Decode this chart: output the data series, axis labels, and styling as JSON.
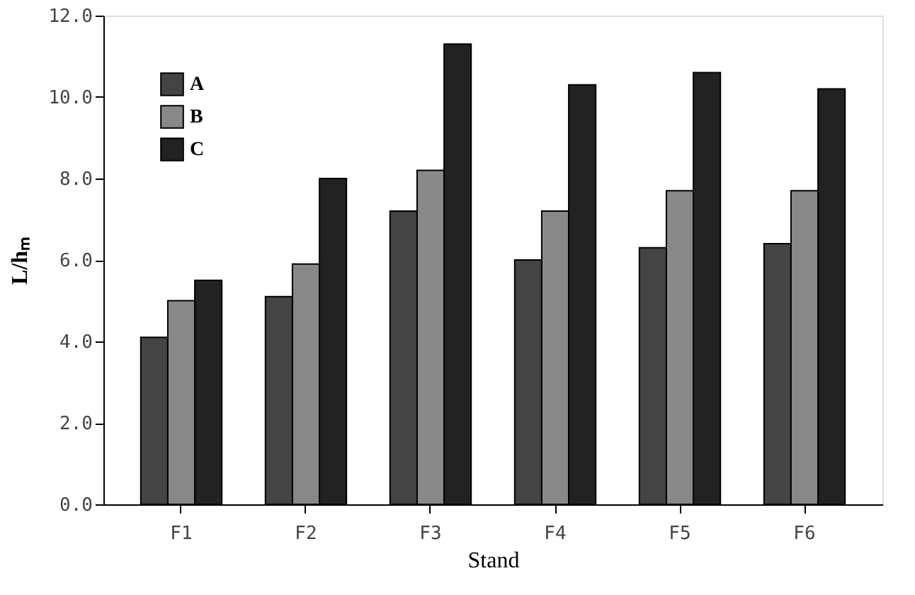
{
  "chart_data": {
    "type": "bar",
    "xlabel": "Stand",
    "ylabel": "L/hₘ",
    "categories": [
      "F1",
      "F2",
      "F3",
      "F4",
      "F5",
      "F6"
    ],
    "series": [
      {
        "name": "A",
        "color": "#444444",
        "values": [
          4.1,
          5.1,
          7.2,
          6.0,
          6.3,
          6.4
        ]
      },
      {
        "name": "B",
        "color": "#888888",
        "values": [
          5.0,
          5.9,
          8.2,
          7.2,
          7.7,
          7.7
        ]
      },
      {
        "name": "C",
        "color": "#222222",
        "values": [
          5.5,
          8.0,
          11.3,
          10.3,
          10.6,
          10.2
        ]
      }
    ],
    "ylim": [
      0,
      12
    ],
    "yticks": [
      {
        "value": 0,
        "label": "0.0"
      },
      {
        "value": 2,
        "label": "2.0"
      },
      {
        "value": 4,
        "label": "4.0"
      },
      {
        "value": 6,
        "label": "6.0"
      },
      {
        "value": 8,
        "label": "8.0"
      },
      {
        "value": 10,
        "label": "10.0"
      },
      {
        "value": 12,
        "label": "12.0"
      }
    ],
    "grid": false,
    "legend": "top left"
  }
}
